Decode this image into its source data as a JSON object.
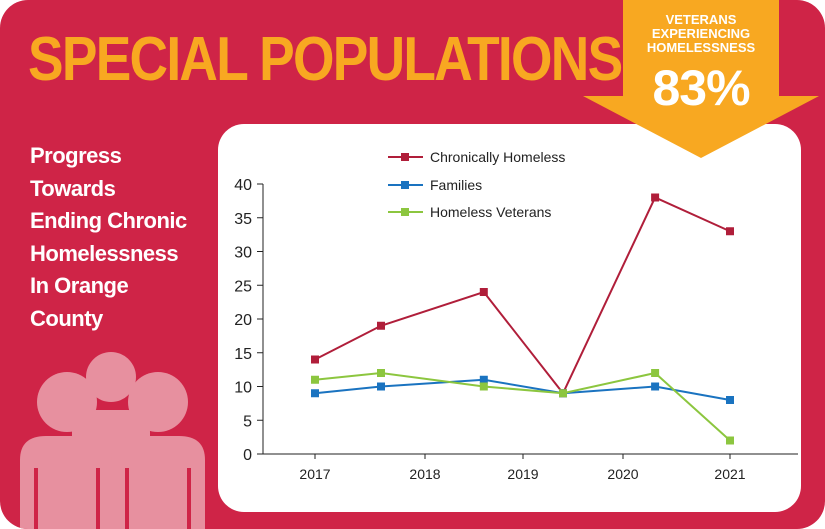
{
  "header": {
    "title": "SPECIAL POPULATIONS"
  },
  "sidebar": {
    "subtitle_lines": [
      "Progress",
      "Towards",
      "Ending Chronic",
      "Homelessness",
      "In Orange",
      "County"
    ]
  },
  "badge": {
    "lines": [
      "VETERANS",
      "EXPERIENCING",
      "HOMELESSNESS"
    ],
    "value": "83%"
  },
  "colors": {
    "background": "#cf2447",
    "title": "#f8a821",
    "badge": "#f8a821",
    "people_icon": "#e7909f"
  },
  "icons": {
    "people": "family-people-icon",
    "badge": "down-arrow-badge-icon"
  },
  "chart_data": {
    "type": "line",
    "categories": [
      "2017",
      "2018",
      "2019",
      "2020",
      "2021"
    ],
    "ylim": [
      0,
      40
    ],
    "yticks": [
      "0",
      "5",
      "10",
      "15",
      "20",
      "25",
      "30",
      "35",
      "40"
    ],
    "grid": false,
    "legend": "top",
    "series": [
      {
        "name": "Chronically Homeless",
        "color": "#b01e3a",
        "points": [
          [
            2017,
            14
          ],
          [
            2017.6,
            19
          ],
          [
            2018.6,
            24
          ],
          [
            2019.4,
            9
          ],
          [
            2020.3,
            38
          ],
          [
            2021,
            33
          ]
        ]
      },
      {
        "name": "Families",
        "color": "#1a73c0",
        "points": [
          [
            2017,
            9
          ],
          [
            2017.6,
            10
          ],
          [
            2018.6,
            11
          ],
          [
            2019.4,
            9
          ],
          [
            2020.3,
            10
          ],
          [
            2021,
            8
          ]
        ]
      },
      {
        "name": "Homeless Veterans",
        "color": "#8cc63f",
        "points": [
          [
            2017,
            11
          ],
          [
            2017.6,
            12
          ],
          [
            2018.6,
            10
          ],
          [
            2019.4,
            9
          ],
          [
            2020.3,
            12
          ],
          [
            2021,
            2
          ]
        ]
      }
    ]
  }
}
